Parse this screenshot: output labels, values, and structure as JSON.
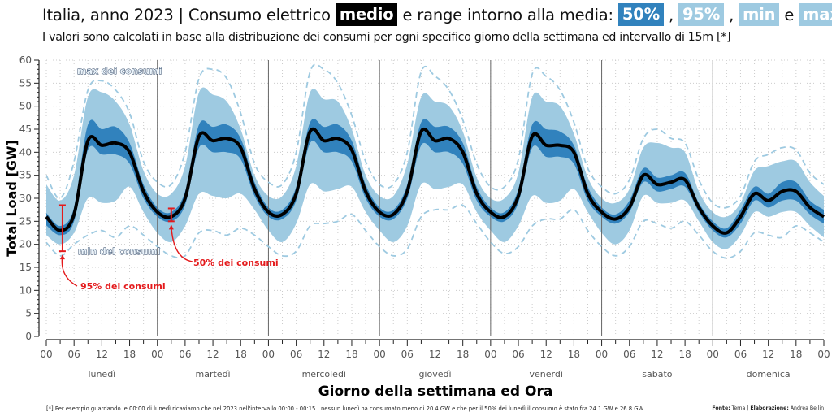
{
  "header": {
    "title_prefix": "Italia, anno 2023 | Consumo elettrico",
    "badge_medio": "medio",
    "title_middle": "e range intorno alla media:",
    "badge_50": "50%",
    "comma1": ",",
    "badge_95": "95%",
    "comma2": ",",
    "badge_min": "min",
    "conj": "e",
    "badge_max": "max",
    "subtitle": "I valori sono calcolati in base alla distribuzione dei consumi per ogni specifico giorno della settimana ed intervallo di 15m [*]"
  },
  "footer": {
    "footnote": "[*] Per esempio guardando le 00:00 di lunedì ricaviamo che nel 2023 nell'intervallo 00:00 - 00:15 : nessun lunedì ha consumato meno di 20.4 GW e che per il 50% dei lunedì il consumo è stato fra 24.1 GW e 26.8 GW.",
    "source_label": "Fonte:",
    "source_value": "Terna",
    "sep": "|",
    "elab_label": "Elaborazione:",
    "elab_value": "Andrea Bellin"
  },
  "colors": {
    "median": "#000000",
    "band50": "#3182bd",
    "band95": "#9ecae1",
    "minmax": "#9ecae1",
    "annotation": "#e41a1c",
    "grid": "#cccccc"
  },
  "chart_data": {
    "type": "area",
    "title": "Italia, anno 2023 | Consumo elettrico medio e range intorno alla media",
    "xlabel": "Giorno della settimana ed Ora",
    "ylabel": "Total Load [GW]",
    "ylim": [
      0,
      60
    ],
    "yticks": [
      0,
      5,
      10,
      15,
      20,
      25,
      30,
      35,
      40,
      45,
      50,
      55,
      60
    ],
    "xtick_labels": [
      "00",
      "06",
      "12",
      "18"
    ],
    "final_xtick_label": "00",
    "days": [
      "lunedì",
      "martedì",
      "mercoledì",
      "giovedì",
      "venerdì",
      "sabato",
      "domenica"
    ],
    "grid": true,
    "x_hours": [
      0,
      3,
      6,
      9,
      12,
      15,
      18,
      21,
      24,
      27,
      30,
      33,
      36,
      39,
      42,
      45,
      48,
      51,
      54,
      57,
      60,
      63,
      66,
      69,
      72,
      75,
      78,
      81,
      84,
      87,
      90,
      93,
      96,
      99,
      102,
      105,
      108,
      111,
      114,
      117,
      120,
      123,
      126,
      129,
      132,
      135,
      138,
      141,
      144,
      147,
      150,
      153,
      156,
      159,
      162,
      165,
      168
    ],
    "series": [
      {
        "name": "medio",
        "values": [
          26.0,
          23.0,
          26.5,
          42.5,
          41.5,
          42.0,
          40.0,
          31.5,
          27.0,
          26.0,
          30.0,
          43.5,
          42.5,
          43.0,
          41.0,
          32.0,
          27.0,
          26.5,
          31.0,
          44.5,
          42.5,
          43.0,
          40.5,
          31.5,
          27.0,
          26.5,
          31.5,
          44.5,
          42.5,
          43.0,
          40.0,
          31.0,
          27.0,
          26.0,
          30.5,
          43.5,
          41.5,
          41.5,
          40.0,
          31.0,
          27.0,
          25.5,
          28.0,
          35.0,
          33.0,
          33.5,
          34.0,
          28.0,
          24.0,
          22.5,
          26.0,
          31.0,
          29.5,
          31.5,
          31.5,
          28.0,
          26.0
        ]
      },
      {
        "name": "50% low",
        "values": [
          24.1,
          22.0,
          25.0,
          40.5,
          39.5,
          39.5,
          37.5,
          30.0,
          26.0,
          25.0,
          28.5,
          41.0,
          40.0,
          40.0,
          38.5,
          30.5,
          26.0,
          25.5,
          29.5,
          42.0,
          40.0,
          40.0,
          38.0,
          30.0,
          26.0,
          25.5,
          30.0,
          41.5,
          40.0,
          40.0,
          37.5,
          29.5,
          26.0,
          25.0,
          29.0,
          41.0,
          39.0,
          39.0,
          37.5,
          29.5,
          26.0,
          24.5,
          27.0,
          33.5,
          31.5,
          32.0,
          32.5,
          27.0,
          23.0,
          21.5,
          24.5,
          29.5,
          28.0,
          29.5,
          29.5,
          26.5,
          24.5
        ]
      },
      {
        "name": "50% high",
        "values": [
          26.8,
          24.0,
          28.0,
          46.0,
          45.0,
          45.5,
          42.0,
          33.0,
          28.0,
          27.0,
          31.5,
          46.0,
          45.5,
          46.0,
          43.0,
          33.5,
          28.0,
          27.5,
          32.5,
          46.5,
          45.5,
          46.0,
          42.5,
          33.0,
          28.0,
          27.5,
          33.0,
          46.5,
          45.5,
          45.5,
          42.0,
          32.5,
          28.0,
          27.0,
          32.0,
          46.0,
          45.0,
          44.5,
          41.5,
          32.5,
          28.0,
          26.5,
          29.5,
          36.5,
          34.5,
          35.0,
          35.5,
          29.0,
          25.0,
          23.5,
          27.5,
          32.5,
          31.0,
          33.5,
          33.5,
          29.5,
          27.5
        ]
      },
      {
        "name": "95% low",
        "values": [
          22.0,
          20.0,
          22.5,
          30.0,
          29.0,
          29.5,
          32.5,
          27.0,
          22.5,
          20.5,
          24.0,
          31.0,
          30.5,
          30.0,
          31.0,
          27.5,
          23.0,
          20.5,
          24.5,
          33.0,
          31.5,
          32.0,
          32.5,
          27.0,
          23.0,
          20.5,
          24.0,
          33.0,
          32.0,
          32.5,
          33.0,
          27.0,
          23.0,
          20.5,
          24.0,
          30.5,
          29.0,
          29.5,
          32.0,
          27.0,
          22.5,
          20.0,
          23.0,
          30.5,
          29.0,
          29.0,
          29.5,
          25.0,
          20.5,
          19.0,
          22.0,
          27.0,
          26.0,
          27.0,
          27.0,
          24.0,
          21.5
        ]
      },
      {
        "name": "95% high",
        "values": [
          33.0,
          29.5,
          35.0,
          52.0,
          53.0,
          51.0,
          46.0,
          36.0,
          31.0,
          31.0,
          37.0,
          53.0,
          52.5,
          51.0,
          45.0,
          35.0,
          30.5,
          30.5,
          37.0,
          53.0,
          51.5,
          51.0,
          45.0,
          35.0,
          30.5,
          30.5,
          37.5,
          52.0,
          51.0,
          50.0,
          44.5,
          34.5,
          30.0,
          30.0,
          35.5,
          52.0,
          51.0,
          50.0,
          44.0,
          34.5,
          30.0,
          29.0,
          32.0,
          41.0,
          42.0,
          41.0,
          40.0,
          31.5,
          27.0,
          26.0,
          29.0,
          36.0,
          37.0,
          38.0,
          38.0,
          33.5,
          30.5
        ]
      },
      {
        "name": "min",
        "values": [
          20.4,
          17.5,
          20.0,
          22.0,
          23.0,
          21.5,
          24.0,
          22.0,
          19.5,
          17.5,
          17.5,
          22.5,
          23.0,
          22.0,
          23.5,
          22.0,
          19.5,
          17.5,
          18.5,
          24.0,
          24.5,
          25.0,
          26.5,
          23.0,
          19.5,
          17.5,
          19.0,
          26.0,
          27.5,
          27.5,
          28.5,
          24.5,
          20.5,
          18.0,
          19.5,
          24.0,
          25.5,
          25.5,
          27.5,
          23.0,
          19.5,
          17.5,
          19.5,
          25.0,
          24.5,
          23.5,
          25.0,
          22.0,
          18.5,
          17.0,
          18.5,
          22.5,
          22.0,
          21.5,
          24.0,
          22.5,
          20.5
        ]
      },
      {
        "name": "max",
        "values": [
          35.0,
          30.0,
          38.0,
          53.5,
          55.5,
          53.5,
          48.5,
          38.0,
          33.5,
          33.0,
          40.0,
          56.0,
          58.0,
          56.0,
          48.5,
          37.5,
          33.5,
          33.0,
          40.0,
          57.5,
          58.0,
          55.0,
          48.0,
          38.0,
          33.0,
          33.0,
          40.0,
          57.5,
          56.5,
          53.5,
          47.0,
          37.5,
          32.5,
          32.5,
          38.5,
          57.0,
          56.5,
          53.5,
          46.5,
          36.5,
          32.5,
          31.0,
          34.0,
          43.0,
          45.0,
          43.0,
          42.0,
          34.0,
          29.0,
          28.0,
          30.5,
          38.0,
          39.5,
          41.0,
          40.5,
          35.5,
          33.0
        ]
      }
    ],
    "annotations": [
      {
        "text": "max dei consumi"
      },
      {
        "text": "min dei consumi"
      },
      {
        "text": "95% dei consumi",
        "x_hour": 3.5,
        "range": [
          18.5,
          28.5
        ]
      },
      {
        "text": "50% dei consumi",
        "x_hour": 27,
        "range": [
          25.0,
          27.8
        ]
      }
    ]
  }
}
